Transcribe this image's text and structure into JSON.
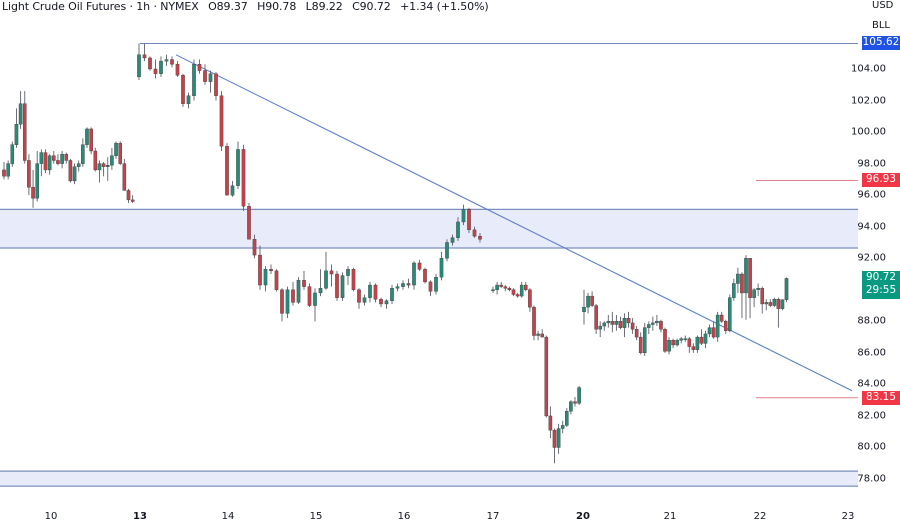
{
  "header": {
    "symbol": "Light Crude Oil Futures · 1h · NYMEX",
    "open": "O89.37",
    "high": "H90.78",
    "low": "L89.22",
    "close": "C90.72",
    "change": "+1.34 (+1.50%)"
  },
  "price_axis": {
    "currency": "USD",
    "unit": "BLL",
    "ticks": [
      "104.00",
      "102.00",
      "100.00",
      "98.00",
      "96.00",
      "94.00",
      "92.00",
      "88.00",
      "86.00",
      "84.00",
      "82.00",
      "80.00",
      "78.00"
    ]
  },
  "time_axis": {
    "ticks": [
      {
        "label": "10",
        "bold": false
      },
      {
        "label": "13",
        "bold": true
      },
      {
        "label": "14",
        "bold": false
      },
      {
        "label": "15",
        "bold": false
      },
      {
        "label": "16",
        "bold": false
      },
      {
        "label": "17",
        "bold": false
      },
      {
        "label": "20",
        "bold": true
      },
      {
        "label": "21",
        "bold": false
      },
      {
        "label": "22",
        "bold": false
      },
      {
        "label": "23",
        "bold": false
      }
    ]
  },
  "price_labels": [
    {
      "name": "resistance-high-label",
      "value": "105.62",
      "price": 105.62,
      "color": "#1e53e5",
      "text_color": "#ffffff"
    },
    {
      "name": "alert-upper-label",
      "value": "96.93",
      "price": 96.93,
      "color": "#f23645",
      "text_color": "#ffffff"
    },
    {
      "name": "current-price-label",
      "value": "90.72",
      "sub": "29:55",
      "price": 90.72,
      "color": "#089981",
      "text_color": "#ffffff"
    },
    {
      "name": "alert-lower-label",
      "value": "83.15",
      "price": 83.15,
      "color": "#f23645",
      "text_color": "#ffffff"
    }
  ],
  "colors": {
    "up": "#26a69a",
    "up_fill": "#2a8a78",
    "down": "#c2434b",
    "wick": "#5d606b",
    "zone_fill": "#e8ecfa",
    "zone_border": "#7a8fc0",
    "trendline": "#5b7fd0",
    "hline_blue": "#6f86b8",
    "alert_line": "#e0808a"
  },
  "chart_data": {
    "type": "candlestick",
    "title": "Light Crude Oil Futures · 1h · NYMEX",
    "xlabel": "",
    "ylabel": "USD / BLL",
    "ylim": [
      77,
      107
    ],
    "x_ticks": [
      "10",
      "13",
      "14",
      "15",
      "16",
      "17",
      "20",
      "21",
      "22",
      "23"
    ],
    "y_ticks": [
      78,
      80,
      82,
      84,
      86,
      88,
      90,
      92,
      94,
      96,
      98,
      100,
      102,
      104
    ],
    "grid": false,
    "last": {
      "open": 89.37,
      "high": 90.78,
      "low": 89.22,
      "close": 90.72,
      "change": 1.34,
      "change_pct": 1.5
    },
    "annotations": [
      {
        "type": "hline",
        "price": 105.62,
        "label": "105.62",
        "x_from": "13"
      },
      {
        "type": "zone",
        "price_top": 95.1,
        "price_bottom": 92.65
      },
      {
        "type": "zone",
        "price_top": 78.5,
        "price_bottom": 77.55
      },
      {
        "type": "trendline",
        "from": {
          "x": "13",
          "price": 104.9
        },
        "to": {
          "x": "23",
          "price": 83.6
        }
      },
      {
        "type": "ray",
        "price": 96.93,
        "label": "96.93"
      },
      {
        "type": "ray",
        "price": 83.15,
        "label": "83.15"
      }
    ],
    "candles": [
      [
        97.6,
        98.1,
        97.0,
        97.2
      ],
      [
        97.2,
        98.2,
        97.0,
        98.0
      ],
      [
        98.0,
        99.4,
        97.8,
        99.2
      ],
      [
        99.2,
        101.5,
        99.0,
        100.5
      ],
      [
        100.5,
        102.6,
        100.2,
        101.8
      ],
      [
        101.8,
        102.6,
        98.0,
        98.2
      ],
      [
        98.2,
        98.6,
        96.0,
        96.5
      ],
      [
        96.5,
        97.6,
        95.2,
        95.8
      ],
      [
        95.8,
        98.8,
        95.6,
        98.0
      ],
      [
        98.0,
        98.9,
        97.2,
        98.7
      ],
      [
        98.7,
        98.9,
        97.4,
        97.6
      ],
      [
        97.6,
        98.6,
        97.3,
        98.5
      ],
      [
        98.5,
        98.8,
        98.0,
        98.2
      ],
      [
        98.2,
        98.6,
        97.9,
        98.0
      ],
      [
        98.0,
        98.8,
        97.7,
        98.6
      ],
      [
        98.6,
        98.7,
        98.0,
        98.2
      ],
      [
        98.2,
        98.3,
        96.8,
        96.9
      ],
      [
        96.9,
        98.0,
        96.7,
        97.8
      ],
      [
        97.8,
        98.2,
        97.5,
        98.0
      ],
      [
        98.0,
        99.6,
        97.8,
        99.2
      ],
      [
        99.2,
        100.3,
        99.0,
        100.2
      ],
      [
        100.2,
        100.3,
        98.6,
        98.8
      ],
      [
        98.8,
        99.0,
        97.5,
        97.6
      ],
      [
        97.6,
        98.2,
        96.8,
        98.0
      ],
      [
        98.0,
        98.1,
        97.2,
        97.8
      ],
      [
        97.8,
        98.4,
        96.9,
        97.9
      ],
      [
        97.9,
        99.0,
        97.6,
        98.5
      ],
      [
        98.5,
        99.4,
        98.3,
        99.3
      ],
      [
        99.3,
        99.4,
        97.9,
        98.0
      ],
      [
        98.0,
        98.3,
        96.3,
        96.3
      ],
      [
        96.3,
        96.4,
        95.5,
        95.7
      ],
      [
        95.7,
        96.0,
        95.5,
        95.6
      ],
      [
        103.5,
        105.62,
        103.3,
        104.9
      ],
      [
        104.9,
        105.62,
        104.5,
        104.7
      ],
      [
        104.7,
        104.8,
        103.9,
        104.0
      ],
      [
        104.0,
        104.6,
        103.4,
        103.7
      ],
      [
        103.7,
        104.8,
        103.5,
        104.5
      ],
      [
        104.5,
        104.9,
        104.2,
        104.6
      ],
      [
        104.6,
        104.8,
        104.1,
        104.3
      ],
      [
        104.3,
        104.5,
        103.5,
        103.6
      ],
      [
        103.6,
        103.7,
        101.6,
        101.8
      ],
      [
        101.8,
        102.5,
        101.5,
        102.3
      ],
      [
        102.3,
        104.6,
        102.0,
        104.3
      ],
      [
        104.3,
        104.6,
        103.7,
        103.9
      ],
      [
        103.9,
        104.3,
        103.0,
        103.2
      ],
      [
        103.2,
        103.9,
        102.5,
        103.7
      ],
      [
        103.7,
        103.8,
        102.0,
        102.3
      ],
      [
        102.3,
        102.6,
        98.8,
        99.1
      ],
      [
        99.1,
        99.3,
        96.2,
        96.0
      ],
      [
        96.0,
        96.9,
        95.9,
        96.6
      ],
      [
        96.6,
        99.4,
        96.4,
        98.9
      ],
      [
        98.9,
        99.2,
        95.0,
        95.3
      ],
      [
        95.3,
        95.5,
        93.5,
        93.2
      ],
      [
        93.2,
        93.5,
        92.0,
        92.2
      ],
      [
        92.2,
        92.8,
        90.0,
        90.3
      ],
      [
        90.3,
        91.5,
        89.9,
        91.3
      ],
      [
        91.3,
        91.6,
        91.0,
        91.2
      ],
      [
        91.2,
        91.3,
        89.9,
        90.0
      ],
      [
        90.0,
        90.1,
        88.0,
        88.5
      ],
      [
        88.5,
        90.2,
        88.2,
        90.0
      ],
      [
        90.0,
        90.5,
        89.0,
        89.2
      ],
      [
        89.2,
        90.8,
        89.1,
        90.6
      ],
      [
        90.6,
        91.2,
        90.0,
        90.2
      ],
      [
        90.2,
        90.4,
        88.9,
        89.0
      ],
      [
        89.0,
        90.1,
        88.0,
        89.8
      ],
      [
        89.8,
        91.3,
        89.6,
        90.1
      ],
      [
        90.1,
        92.4,
        90.0,
        91.2
      ],
      [
        91.2,
        91.6,
        90.2,
        91.0
      ],
      [
        91.0,
        91.2,
        89.3,
        89.5
      ],
      [
        89.5,
        91.1,
        89.3,
        90.9
      ],
      [
        90.9,
        91.5,
        90.3,
        91.3
      ],
      [
        91.3,
        91.4,
        89.9,
        90.0
      ],
      [
        90.0,
        90.1,
        88.8,
        89.2
      ],
      [
        89.2,
        89.7,
        89.0,
        89.5
      ],
      [
        89.5,
        90.5,
        89.2,
        90.3
      ],
      [
        90.3,
        90.4,
        89.2,
        89.4
      ],
      [
        89.4,
        89.5,
        88.9,
        89.1
      ],
      [
        89.1,
        89.4,
        88.8,
        89.3
      ],
      [
        89.3,
        90.3,
        89.1,
        90.1
      ],
      [
        90.1,
        90.4,
        89.9,
        90.2
      ],
      [
        90.2,
        90.6,
        90.0,
        90.4
      ],
      [
        90.4,
        90.7,
        90.1,
        90.3
      ],
      [
        90.3,
        91.8,
        90.0,
        91.7
      ],
      [
        91.7,
        91.9,
        91.2,
        91.3
      ],
      [
        91.3,
        91.4,
        90.4,
        90.5
      ],
      [
        90.5,
        90.6,
        89.6,
        89.9
      ],
      [
        89.9,
        91.0,
        89.7,
        90.8
      ],
      [
        90.8,
        92.4,
        90.6,
        92.0
      ],
      [
        92.0,
        93.2,
        91.8,
        93.0
      ],
      [
        93.0,
        93.5,
        92.8,
        93.3
      ],
      [
        93.3,
        94.6,
        93.1,
        94.3
      ],
      [
        94.3,
        95.4,
        94.1,
        95.1
      ],
      [
        95.1,
        95.2,
        93.6,
        93.8
      ],
      [
        93.8,
        94.0,
        93.3,
        93.4
      ],
      [
        93.4,
        93.6,
        93.0,
        93.2
      ],
      [
        90.0,
        90.2,
        89.8,
        90.0
      ],
      [
        90.0,
        90.5,
        89.7,
        90.3
      ],
      [
        90.3,
        90.5,
        90.1,
        90.2
      ],
      [
        90.2,
        90.3,
        89.9,
        90.1
      ],
      [
        90.1,
        90.2,
        89.9,
        90.0
      ],
      [
        90.0,
        90.1,
        89.6,
        89.7
      ],
      [
        89.7,
        89.8,
        89.5,
        89.6
      ],
      [
        89.6,
        90.5,
        89.5,
        90.3
      ],
      [
        90.3,
        90.5,
        89.9,
        90.0
      ],
      [
        90.0,
        90.1,
        88.6,
        88.9
      ],
      [
        88.9,
        89.0,
        86.8,
        87.1
      ],
      [
        87.1,
        87.4,
        86.8,
        87.2
      ],
      [
        87.2,
        87.5,
        87.0,
        87.0
      ],
      [
        87.0,
        87.1,
        81.9,
        82.0
      ],
      [
        82.0,
        82.6,
        80.6,
        81.1
      ],
      [
        81.1,
        81.2,
        79.0,
        80.0
      ],
      [
        80.0,
        81.5,
        79.6,
        81.2
      ],
      [
        81.2,
        81.7,
        80.9,
        81.4
      ],
      [
        81.4,
        82.5,
        81.3,
        82.3
      ],
      [
        82.3,
        83.0,
        82.1,
        82.9
      ],
      [
        82.9,
        83.2,
        82.6,
        82.8
      ],
      [
        82.8,
        83.9,
        82.7,
        83.8
      ],
      [
        88.6,
        90.0,
        87.8,
        88.9
      ],
      [
        88.9,
        89.8,
        88.5,
        89.6
      ],
      [
        89.6,
        89.9,
        88.9,
        89.0
      ],
      [
        89.0,
        89.1,
        87.2,
        87.5
      ],
      [
        87.5,
        88.0,
        87.0,
        87.7
      ],
      [
        87.7,
        88.0,
        87.4,
        87.9
      ],
      [
        87.9,
        88.4,
        87.6,
        88.0
      ],
      [
        88.0,
        88.6,
        87.3,
        87.8
      ],
      [
        87.8,
        88.4,
        87.4,
        88.0
      ],
      [
        88.0,
        88.3,
        87.5,
        87.6
      ],
      [
        87.6,
        88.5,
        87.0,
        88.2
      ],
      [
        88.2,
        88.6,
        87.6,
        87.9
      ],
      [
        87.9,
        88.2,
        87.2,
        87.5
      ],
      [
        87.5,
        87.7,
        86.8,
        87.0
      ],
      [
        87.0,
        87.3,
        85.9,
        86.0
      ],
      [
        86.0,
        87.9,
        85.8,
        87.6
      ],
      [
        87.6,
        88.0,
        87.2,
        87.8
      ],
      [
        87.8,
        88.3,
        87.4,
        87.9
      ],
      [
        87.9,
        88.4,
        87.7,
        88.0
      ],
      [
        88.0,
        88.1,
        87.3,
        87.5
      ],
      [
        87.5,
        87.6,
        86.0,
        86.1
      ],
      [
        86.1,
        87.0,
        85.9,
        86.8
      ],
      [
        86.8,
        86.9,
        86.3,
        86.5
      ],
      [
        86.5,
        86.9,
        86.4,
        86.8
      ],
      [
        86.8,
        87.0,
        86.6,
        86.9
      ],
      [
        86.9,
        87.1,
        86.7,
        86.9
      ],
      [
        86.9,
        87.0,
        86.0,
        86.4
      ],
      [
        86.4,
        86.6,
        86.0,
        86.2
      ],
      [
        86.2,
        87.1,
        86.0,
        87.0
      ],
      [
        87.0,
        87.5,
        86.5,
        86.6
      ],
      [
        86.6,
        87.4,
        86.3,
        87.2
      ],
      [
        87.2,
        87.8,
        87.0,
        87.6
      ],
      [
        87.6,
        88.0,
        86.9,
        87.0
      ],
      [
        87.0,
        88.6,
        86.7,
        88.4
      ],
      [
        88.4,
        88.6,
        87.9,
        88.0
      ],
      [
        88.0,
        88.1,
        87.2,
        87.4
      ],
      [
        87.4,
        89.7,
        87.3,
        89.5
      ],
      [
        89.5,
        90.7,
        89.3,
        90.4
      ],
      [
        90.4,
        91.4,
        89.8,
        91.0
      ],
      [
        91.0,
        91.1,
        88.2,
        89.8
      ],
      [
        89.8,
        92.2,
        88.1,
        92.0
      ],
      [
        92.0,
        92.0,
        88.2,
        89.5
      ],
      [
        89.5,
        90.1,
        88.9,
        90.0
      ],
      [
        90.0,
        90.4,
        89.6,
        90.1
      ],
      [
        90.1,
        90.2,
        88.5,
        89.1
      ],
      [
        89.1,
        89.4,
        88.7,
        89.2
      ],
      [
        89.2,
        89.4,
        88.9,
        89.0
      ],
      [
        89.0,
        89.5,
        88.9,
        89.4
      ],
      [
        89.4,
        89.5,
        87.6,
        88.8
      ],
      [
        88.8,
        89.4,
        88.7,
        89.37
      ],
      [
        89.37,
        90.78,
        89.22,
        90.72
      ]
    ]
  }
}
